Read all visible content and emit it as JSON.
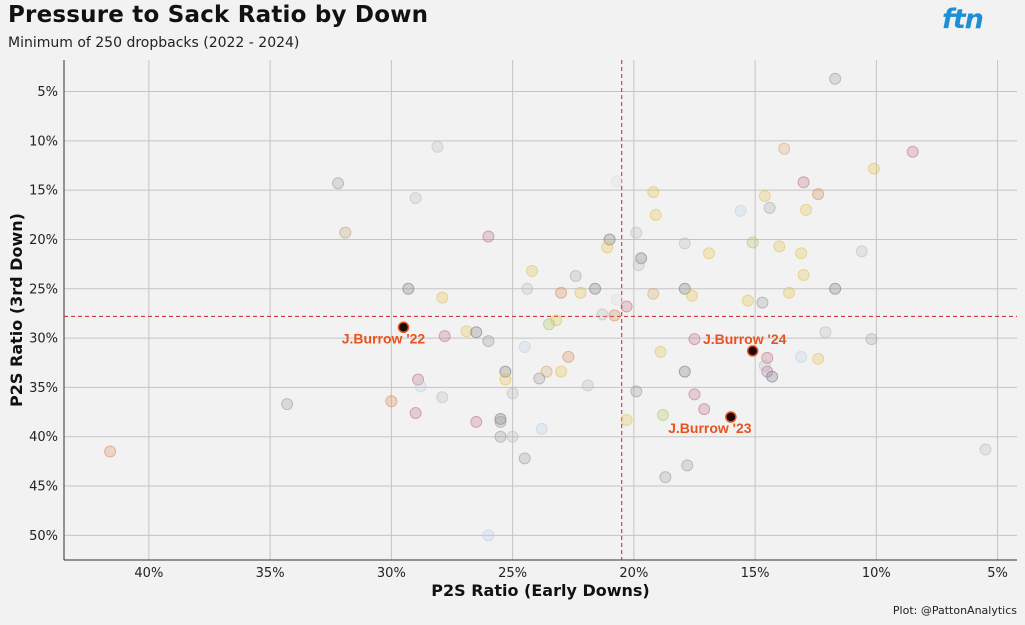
{
  "header": {
    "title": "Pressure to Sack Ratio by Down",
    "subtitle": "Minimum of 250 dropbacks (2022 - 2024)",
    "logo_text": "ftn",
    "caption": "Plot: @PattonAnalytics"
  },
  "chart_data": {
    "type": "scatter",
    "title": "Pressure to Sack Ratio by Down",
    "subtitle": "Minimum of 250 dropbacks (2022 - 2024)",
    "xlabel": "P2S Ratio (Early Downs)",
    "ylabel": "P2S Ratio (3rd Down)",
    "x_reversed": true,
    "y_reversed": true,
    "xlim": [
      43.5,
      4.2
    ],
    "ylim": [
      1.8,
      52.5
    ],
    "x_ticks": [
      40,
      35,
      30,
      25,
      20,
      15,
      10,
      5
    ],
    "x_tick_labels": [
      "40%",
      "35%",
      "30%",
      "25%",
      "20%",
      "15%",
      "10%",
      "5%"
    ],
    "y_ticks": [
      5,
      10,
      15,
      20,
      25,
      30,
      35,
      40,
      45,
      50
    ],
    "y_tick_labels": [
      "5%",
      "10%",
      "15%",
      "20%",
      "25%",
      "30%",
      "35%",
      "40%",
      "45%",
      "50%"
    ],
    "grid": true,
    "reference_lines": {
      "x": 20.5,
      "y": 27.8,
      "color": "#cc2222"
    },
    "highlight_color": "#e8531f",
    "points": [
      {
        "x": 11.7,
        "y": 3.7,
        "color": "#999999"
      },
      {
        "x": 28.1,
        "y": 10.6,
        "color": "#bbbbbb"
      },
      {
        "x": 13.8,
        "y": 10.8,
        "color": "#d9a86a"
      },
      {
        "x": 8.5,
        "y": 11.1,
        "color": "#c07080"
      },
      {
        "x": 10.1,
        "y": 12.8,
        "color": "#e3c24a"
      },
      {
        "x": 32.2,
        "y": 14.3,
        "color": "#999999"
      },
      {
        "x": 20.7,
        "y": 14.1,
        "color": "#dddddd"
      },
      {
        "x": 13.0,
        "y": 14.2,
        "color": "#c07080"
      },
      {
        "x": 19.2,
        "y": 15.2,
        "color": "#e3c24a"
      },
      {
        "x": 14.6,
        "y": 15.6,
        "color": "#e3c24a"
      },
      {
        "x": 12.4,
        "y": 15.4,
        "color": "#d98a5a"
      },
      {
        "x": 29.0,
        "y": 15.8,
        "color": "#bbbbbb"
      },
      {
        "x": 14.4,
        "y": 16.8,
        "color": "#aaaaaa"
      },
      {
        "x": 15.6,
        "y": 17.1,
        "color": "#bcd0e6"
      },
      {
        "x": 12.9,
        "y": 17.0,
        "color": "#e3c24a"
      },
      {
        "x": 19.1,
        "y": 17.5,
        "color": "#e3c24a"
      },
      {
        "x": 31.9,
        "y": 19.3,
        "color": "#b7a370"
      },
      {
        "x": 26.0,
        "y": 19.7,
        "color": "#c07080"
      },
      {
        "x": 19.9,
        "y": 19.3,
        "color": "#bbbbbb"
      },
      {
        "x": 21.0,
        "y": 20.0,
        "color": "#777777"
      },
      {
        "x": 21.1,
        "y": 20.8,
        "color": "#e3c24a"
      },
      {
        "x": 17.9,
        "y": 20.4,
        "color": "#bbbbbb"
      },
      {
        "x": 15.1,
        "y": 20.3,
        "color": "#a8c860"
      },
      {
        "x": 14.0,
        "y": 20.7,
        "color": "#e3c24a"
      },
      {
        "x": 10.6,
        "y": 21.2,
        "color": "#bbbbbb"
      },
      {
        "x": 13.1,
        "y": 21.4,
        "color": "#e3c24a"
      },
      {
        "x": 16.9,
        "y": 21.4,
        "color": "#e3c24a"
      },
      {
        "x": 19.7,
        "y": 21.9,
        "color": "#777777"
      },
      {
        "x": 19.8,
        "y": 22.6,
        "color": "#bbbbbb"
      },
      {
        "x": 24.2,
        "y": 23.2,
        "color": "#e3c24a"
      },
      {
        "x": 22.4,
        "y": 23.7,
        "color": "#aaaaaa"
      },
      {
        "x": 13.0,
        "y": 23.6,
        "color": "#e3c24a"
      },
      {
        "x": 29.3,
        "y": 25.0,
        "color": "#777777"
      },
      {
        "x": 24.4,
        "y": 25.0,
        "color": "#bbbbbb"
      },
      {
        "x": 23.0,
        "y": 25.4,
        "color": "#d98a5a"
      },
      {
        "x": 22.2,
        "y": 25.4,
        "color": "#e3c24a"
      },
      {
        "x": 21.6,
        "y": 25.0,
        "color": "#777777"
      },
      {
        "x": 19.2,
        "y": 25.5,
        "color": "#d9a86a"
      },
      {
        "x": 17.9,
        "y": 25.0,
        "color": "#777777"
      },
      {
        "x": 17.6,
        "y": 25.7,
        "color": "#e3c24a"
      },
      {
        "x": 13.6,
        "y": 25.4,
        "color": "#e3c24a"
      },
      {
        "x": 11.7,
        "y": 25.0,
        "color": "#777777"
      },
      {
        "x": 27.9,
        "y": 25.9,
        "color": "#e3c24a"
      },
      {
        "x": 20.7,
        "y": 26.1,
        "color": "#dddddd"
      },
      {
        "x": 15.3,
        "y": 26.2,
        "color": "#e3c24a"
      },
      {
        "x": 14.7,
        "y": 26.4,
        "color": "#999999"
      },
      {
        "x": 20.3,
        "y": 26.8,
        "color": "#c07080"
      },
      {
        "x": 21.3,
        "y": 27.6,
        "color": "#bbbbbb"
      },
      {
        "x": 20.8,
        "y": 27.7,
        "color": "#d98a5a"
      },
      {
        "x": 23.2,
        "y": 28.2,
        "color": "#e3c24a"
      },
      {
        "x": 23.5,
        "y": 28.6,
        "color": "#a8c860"
      },
      {
        "x": 26.9,
        "y": 29.3,
        "color": "#e3c24a"
      },
      {
        "x": 26.5,
        "y": 29.4,
        "color": "#777777"
      },
      {
        "x": 27.8,
        "y": 29.8,
        "color": "#c07080"
      },
      {
        "x": 26.0,
        "y": 30.3,
        "color": "#999999"
      },
      {
        "x": 24.5,
        "y": 30.9,
        "color": "#bcd0e6"
      },
      {
        "x": 12.1,
        "y": 29.4,
        "color": "#bbbbbb"
      },
      {
        "x": 10.2,
        "y": 30.1,
        "color": "#aaaaaa"
      },
      {
        "x": 17.5,
        "y": 30.1,
        "color": "#c07080"
      },
      {
        "x": 22.7,
        "y": 31.9,
        "color": "#d98a5a"
      },
      {
        "x": 18.9,
        "y": 31.4,
        "color": "#e3c24a"
      },
      {
        "x": 14.5,
        "y": 32.0,
        "color": "#c07080"
      },
      {
        "x": 13.1,
        "y": 31.9,
        "color": "#bcd0e6"
      },
      {
        "x": 12.4,
        "y": 32.1,
        "color": "#e3c24a"
      },
      {
        "x": 25.3,
        "y": 33.4,
        "color": "#777777"
      },
      {
        "x": 23.6,
        "y": 33.4,
        "color": "#d9a86a"
      },
      {
        "x": 23.0,
        "y": 33.4,
        "color": "#e3c24a"
      },
      {
        "x": 23.9,
        "y": 34.1,
        "color": "#999999"
      },
      {
        "x": 25.3,
        "y": 34.2,
        "color": "#e3c24a"
      },
      {
        "x": 28.9,
        "y": 34.2,
        "color": "#c07080"
      },
      {
        "x": 17.9,
        "y": 33.4,
        "color": "#777777"
      },
      {
        "x": 14.6,
        "y": 32.8,
        "color": "#bbbbbb"
      },
      {
        "x": 14.5,
        "y": 33.4,
        "color": "#b57aa8"
      },
      {
        "x": 14.3,
        "y": 33.9,
        "color": "#777777"
      },
      {
        "x": 28.8,
        "y": 34.9,
        "color": "#bcd0e6"
      },
      {
        "x": 21.9,
        "y": 34.8,
        "color": "#bbbbbb"
      },
      {
        "x": 19.9,
        "y": 35.4,
        "color": "#999999"
      },
      {
        "x": 25.0,
        "y": 35.6,
        "color": "#bbbbbb"
      },
      {
        "x": 17.5,
        "y": 35.7,
        "color": "#c07080"
      },
      {
        "x": 27.9,
        "y": 36.0,
        "color": "#bbbbbb"
      },
      {
        "x": 30.0,
        "y": 36.4,
        "color": "#d98a5a"
      },
      {
        "x": 34.3,
        "y": 36.7,
        "color": "#999999"
      },
      {
        "x": 17.1,
        "y": 37.2,
        "color": "#c07080"
      },
      {
        "x": 29.0,
        "y": 37.6,
        "color": "#c07080"
      },
      {
        "x": 18.8,
        "y": 37.8,
        "color": "#a8c860"
      },
      {
        "x": 20.3,
        "y": 38.3,
        "color": "#e3c24a"
      },
      {
        "x": 25.5,
        "y": 38.2,
        "color": "#777777"
      },
      {
        "x": 25.5,
        "y": 38.5,
        "color": "#999999"
      },
      {
        "x": 26.5,
        "y": 38.5,
        "color": "#c07080"
      },
      {
        "x": 23.8,
        "y": 39.2,
        "color": "#bcd0e6"
      },
      {
        "x": 25.5,
        "y": 40.0,
        "color": "#999999"
      },
      {
        "x": 25.0,
        "y": 40.0,
        "color": "#bbbbbb"
      },
      {
        "x": 24.5,
        "y": 42.2,
        "color": "#999999"
      },
      {
        "x": 17.8,
        "y": 42.9,
        "color": "#999999"
      },
      {
        "x": 18.7,
        "y": 44.1,
        "color": "#999999"
      },
      {
        "x": 41.6,
        "y": 41.5,
        "color": "#d98a5a"
      },
      {
        "x": 5.5,
        "y": 41.3,
        "color": "#bbbbbb"
      },
      {
        "x": 26.0,
        "y": 50.0,
        "color": "#bcd0e6"
      }
    ],
    "highlighted": [
      {
        "label": "J.Burrow '22",
        "x": 29.5,
        "y": 28.9
      },
      {
        "label": "J.Burrow '24",
        "x": 15.1,
        "y": 31.3
      },
      {
        "label": "J.Burrow '23",
        "x": 16.0,
        "y": 38.0
      }
    ]
  }
}
